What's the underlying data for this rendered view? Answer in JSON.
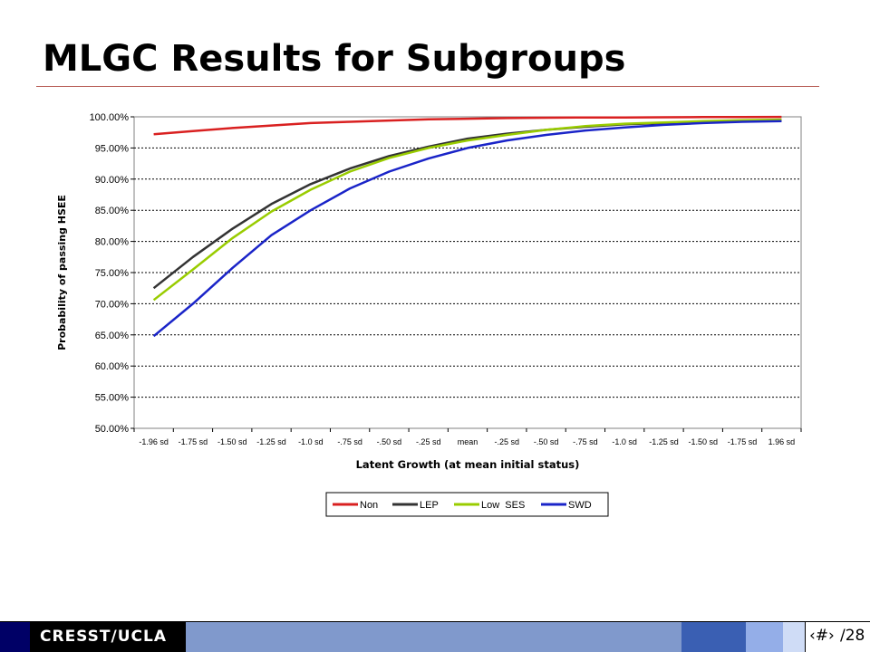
{
  "slide": {
    "title": "MLGC Results for Subgroups",
    "footer_brand": "CRESST/UCLA",
    "page_number": "‹#›",
    "page_total": "/28"
  },
  "colors": {
    "title_rule": "#b9625a",
    "Non": "#d92020",
    "LEP": "#333333",
    "Low  SES": "#99cc00",
    "SWD": "#1a24c8"
  },
  "chart_data": {
    "type": "line",
    "title": "",
    "xlabel": "Latent Growth (at mean initial status)",
    "ylabel": "Probability of passing HSEE",
    "categories": [
      "-1.96 sd",
      "-1.75 sd",
      "-1.50 sd",
      "-1.25 sd",
      "-1.0 sd",
      "-.75 sd",
      "-.50 sd",
      "-.25 sd",
      "mean",
      "-.25 sd",
      "-.50 sd",
      "-.75 sd",
      "-1.0 sd",
      "-1.25 sd",
      "-1.50 sd",
      "-1.75 sd",
      "1.96 sd"
    ],
    "yticks": [
      "100.00%",
      "95.00%",
      "90.00%",
      "85.00%",
      "80.00%",
      "75.00%",
      "70.00%",
      "65.00%",
      "60.00%",
      "55.00%",
      "50.00%"
    ],
    "ylim": [
      50,
      100
    ],
    "grid": true,
    "legend_position": "bottom",
    "series": [
      {
        "name": "Non",
        "values": [
          97.2,
          97.7,
          98.2,
          98.6,
          99.0,
          99.2,
          99.4,
          99.6,
          99.7,
          99.8,
          99.85,
          99.9,
          99.9,
          99.93,
          99.95,
          99.97,
          99.98
        ]
      },
      {
        "name": "LEP",
        "values": [
          72.5,
          77.5,
          82.0,
          86.0,
          89.2,
          91.7,
          93.7,
          95.2,
          96.5,
          97.3,
          97.9,
          98.4,
          98.8,
          99.0,
          99.2,
          99.3,
          99.4
        ]
      },
      {
        "name": "Low  SES",
        "values": [
          70.6,
          75.5,
          80.5,
          84.8,
          88.3,
          91.2,
          93.4,
          95.0,
          96.2,
          97.1,
          97.9,
          98.5,
          98.9,
          99.1,
          99.3,
          99.45,
          99.55
        ]
      },
      {
        "name": "SWD",
        "values": [
          64.8,
          70.0,
          75.7,
          81.0,
          85.0,
          88.5,
          91.2,
          93.3,
          95.0,
          96.2,
          97.1,
          97.8,
          98.3,
          98.7,
          99.0,
          99.2,
          99.3
        ]
      }
    ]
  }
}
